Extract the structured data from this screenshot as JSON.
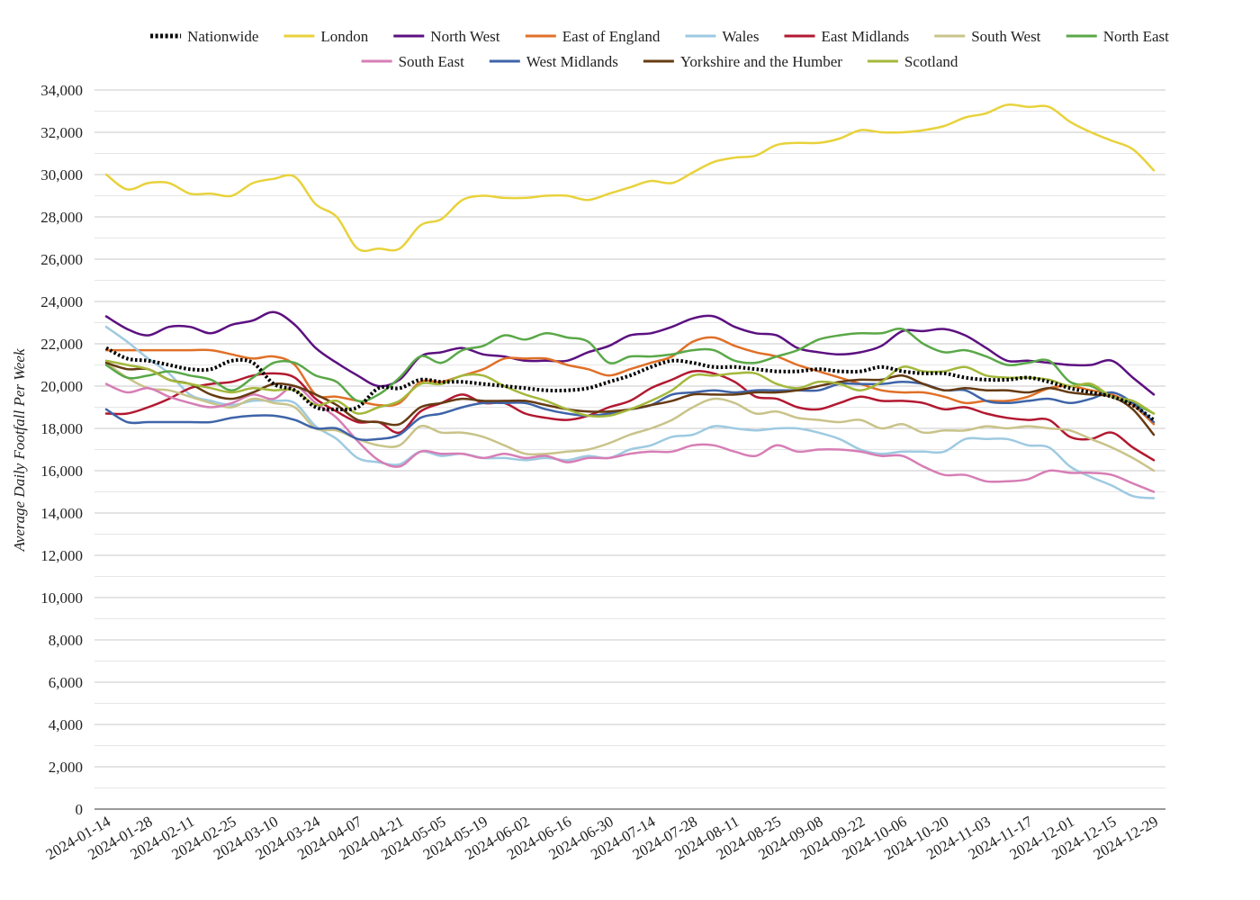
{
  "chart_data": {
    "type": "line",
    "ylabel": "Average Daily Footfall Per Week",
    "xlabel": "",
    "ylim": [
      0,
      34000
    ],
    "yticks": [
      0,
      2000,
      4000,
      6000,
      8000,
      10000,
      12000,
      14000,
      16000,
      18000,
      20000,
      22000,
      24000,
      26000,
      28000,
      30000,
      32000,
      34000
    ],
    "ytick_labels": [
      "0",
      "2,000",
      "4,000",
      "6,000",
      "8,000",
      "10,000",
      "12,000",
      "14,000",
      "16,000",
      "18,000",
      "20,000",
      "22,000",
      "24,000",
      "26,000",
      "28,000",
      "30,000",
      "32,000",
      "34,000"
    ],
    "x_tick_labels": [
      "2024-01-14",
      "2024-01-28",
      "2024-02-11",
      "2024-02-25",
      "2024-03-10",
      "2024-03-24",
      "2024-04-07",
      "2024-04-21",
      "2024-05-05",
      "2024-05-19",
      "2024-06-02",
      "2024-06-16",
      "2024-06-30",
      "2024-07-14",
      "2024-07-28",
      "2024-08-11",
      "2024-08-25",
      "2024-09-08",
      "2024-09-22",
      "2024-10-06",
      "2024-10-20",
      "2024-11-03",
      "2024-11-17",
      "2024-12-01",
      "2024-12-15",
      "2024-12-29"
    ],
    "grid": true,
    "legend_position": "top",
    "x": [
      "2024-01-14",
      "2024-01-21",
      "2024-01-28",
      "2024-02-04",
      "2024-02-11",
      "2024-02-18",
      "2024-02-25",
      "2024-03-03",
      "2024-03-10",
      "2024-03-17",
      "2024-03-24",
      "2024-03-31",
      "2024-04-07",
      "2024-04-14",
      "2024-04-21",
      "2024-04-28",
      "2024-05-05",
      "2024-05-12",
      "2024-05-19",
      "2024-05-26",
      "2024-06-02",
      "2024-06-09",
      "2024-06-16",
      "2024-06-23",
      "2024-06-30",
      "2024-07-07",
      "2024-07-14",
      "2024-07-21",
      "2024-07-28",
      "2024-08-04",
      "2024-08-11",
      "2024-08-18",
      "2024-08-25",
      "2024-09-01",
      "2024-09-08",
      "2024-09-15",
      "2024-09-22",
      "2024-09-29",
      "2024-10-06",
      "2024-10-13",
      "2024-10-20",
      "2024-10-27",
      "2024-11-03",
      "2024-11-10",
      "2024-11-17",
      "2024-11-24",
      "2024-12-01",
      "2024-12-08",
      "2024-12-15",
      "2024-12-22",
      "2024-12-29"
    ],
    "series": [
      {
        "name": "Nationwide",
        "color": "#000000",
        "style": "dotted",
        "values": [
          21800,
          21300,
          21200,
          21000,
          20800,
          20800,
          21200,
          21100,
          20100,
          19800,
          19000,
          18900,
          19000,
          19900,
          19900,
          20300,
          20200,
          20200,
          20100,
          20000,
          19900,
          19800,
          19800,
          19900,
          20200,
          20500,
          20900,
          21200,
          21100,
          20900,
          20900,
          20800,
          20700,
          20700,
          20800,
          20700,
          20700,
          20900,
          20700,
          20600,
          20600,
          20400,
          20300,
          20300,
          20400,
          20200,
          19900,
          19700,
          19500,
          19100,
          18400
        ]
      },
      {
        "name": "London",
        "color": "#e8d23c",
        "values": [
          30000,
          29300,
          29600,
          29600,
          29100,
          29100,
          29000,
          29600,
          29800,
          29900,
          28600,
          28000,
          26500,
          26500,
          26500,
          27600,
          27900,
          28800,
          29000,
          28900,
          28900,
          29000,
          29000,
          28800,
          29100,
          29400,
          29700,
          29600,
          30100,
          30600,
          30800,
          30900,
          31400,
          31500,
          31500,
          31700,
          32100,
          32000,
          32000,
          32100,
          32300,
          32700,
          32900,
          33300,
          33200,
          33200,
          32500,
          32000,
          31600,
          31200,
          30200
        ]
      },
      {
        "name": "North West",
        "color": "#5c1080",
        "values": [
          23300,
          22700,
          22400,
          22800,
          22800,
          22500,
          22900,
          23100,
          23500,
          22900,
          21800,
          21100,
          20500,
          20000,
          20300,
          21400,
          21600,
          21800,
          21500,
          21400,
          21200,
          21200,
          21200,
          21600,
          21900,
          22400,
          22500,
          22800,
          23200,
          23300,
          22800,
          22500,
          22400,
          21800,
          21600,
          21500,
          21600,
          21900,
          22600,
          22600,
          22700,
          22400,
          21800,
          21200,
          21200,
          21100,
          21000,
          21000,
          21200,
          20400,
          19600
        ]
      },
      {
        "name": "East of England",
        "color": "#e07028",
        "values": [
          21700,
          21700,
          21700,
          21700,
          21700,
          21700,
          21500,
          21300,
          21400,
          21000,
          19600,
          19500,
          19300,
          19100,
          19200,
          20200,
          20200,
          20500,
          20800,
          21300,
          21300,
          21300,
          21000,
          20800,
          20500,
          20800,
          21100,
          21400,
          22100,
          22300,
          21900,
          21600,
          21400,
          21000,
          20700,
          20400,
          20100,
          19800,
          19700,
          19700,
          19500,
          19200,
          19300,
          19300,
          19500,
          19900,
          20000,
          19800,
          19600,
          19100,
          18200
        ]
      },
      {
        "name": "Wales",
        "color": "#9ecae1",
        "values": [
          22800,
          22100,
          21300,
          20600,
          19600,
          19300,
          19100,
          19300,
          19300,
          19200,
          18100,
          17500,
          16600,
          16400,
          16300,
          16900,
          16700,
          16800,
          16600,
          16600,
          16500,
          16600,
          16500,
          16700,
          16600,
          17000,
          17200,
          17600,
          17700,
          18100,
          18000,
          17900,
          18000,
          18000,
          17800,
          17500,
          17000,
          16800,
          16900,
          16900,
          16900,
          17500,
          17500,
          17500,
          17200,
          17100,
          16200,
          15700,
          15300,
          14800,
          14700
        ]
      },
      {
        "name": "East Midlands",
        "color": "#b21830",
        "values": [
          18700,
          18700,
          19000,
          19400,
          19900,
          20100,
          20200,
          20500,
          20600,
          20400,
          19400,
          18800,
          18300,
          18300,
          17800,
          18800,
          19200,
          19600,
          19200,
          19200,
          18700,
          18500,
          18400,
          18600,
          19000,
          19300,
          19900,
          20300,
          20700,
          20600,
          20200,
          19500,
          19400,
          19000,
          18900,
          19200,
          19500,
          19300,
          19300,
          19200,
          18900,
          19000,
          18700,
          18500,
          18400,
          18400,
          17600,
          17500,
          17800,
          17100,
          16500
        ]
      },
      {
        "name": "South West",
        "color": "#c9c38a",
        "values": [
          21100,
          20400,
          19900,
          19800,
          19500,
          19200,
          19000,
          19400,
          19200,
          19000,
          18000,
          17900,
          17500,
          17200,
          17200,
          18100,
          17800,
          17800,
          17600,
          17200,
          16800,
          16800,
          16900,
          17000,
          17300,
          17700,
          18000,
          18400,
          19000,
          19400,
          19200,
          18700,
          18800,
          18500,
          18400,
          18300,
          18400,
          18000,
          18200,
          17800,
          17900,
          17900,
          18100,
          18000,
          18100,
          18000,
          17900,
          17500,
          17100,
          16600,
          16000
        ]
      },
      {
        "name": "North East",
        "color": "#5aa848",
        "values": [
          21000,
          20400,
          20500,
          20700,
          20500,
          20300,
          19800,
          20400,
          21100,
          21100,
          20500,
          20200,
          19300,
          19600,
          20400,
          21400,
          21100,
          21700,
          21900,
          22400,
          22200,
          22500,
          22300,
          22100,
          21100,
          21400,
          21400,
          21500,
          21700,
          21700,
          21200,
          21100,
          21400,
          21700,
          22200,
          22400,
          22500,
          22500,
          22700,
          22000,
          21600,
          21700,
          21400,
          21000,
          21100,
          21200,
          20200,
          20000,
          19500,
          19200,
          18700
        ]
      },
      {
        "name": "South East",
        "color": "#d67eb5",
        "values": [
          20100,
          19700,
          19900,
          19500,
          19200,
          19000,
          19200,
          19600,
          19400,
          20000,
          19200,
          18500,
          17400,
          16500,
          16200,
          16900,
          16800,
          16800,
          16600,
          16800,
          16600,
          16700,
          16400,
          16600,
          16600,
          16800,
          16900,
          16900,
          17200,
          17200,
          16900,
          16700,
          17200,
          16900,
          17000,
          17000,
          16900,
          16700,
          16700,
          16200,
          15800,
          15800,
          15500,
          15500,
          15600,
          16000,
          15900,
          15900,
          15800,
          15400,
          15000
        ]
      },
      {
        "name": "West Midlands",
        "color": "#3e64a8",
        "values": [
          18900,
          18300,
          18300,
          18300,
          18300,
          18300,
          18500,
          18600,
          18600,
          18400,
          18000,
          18000,
          17500,
          17500,
          17700,
          18500,
          18700,
          19000,
          19200,
          19200,
          19200,
          18900,
          18700,
          18600,
          18700,
          18900,
          19100,
          19600,
          19700,
          19800,
          19700,
          19800,
          19800,
          19800,
          19800,
          20100,
          20100,
          20100,
          20200,
          20100,
          19800,
          19800,
          19300,
          19200,
          19300,
          19400,
          19200,
          19400,
          19700,
          19200,
          18300
        ]
      },
      {
        "name": "Yorkshire and the Humber",
        "color": "#663b12",
        "values": [
          21100,
          20800,
          20800,
          20300,
          20100,
          19600,
          19400,
          19700,
          20100,
          20000,
          19600,
          19100,
          18400,
          18300,
          18200,
          19000,
          19200,
          19400,
          19300,
          19300,
          19300,
          19100,
          18900,
          18800,
          18800,
          18900,
          19100,
          19300,
          19600,
          19600,
          19600,
          19700,
          19700,
          19800,
          20000,
          20200,
          20300,
          20300,
          20500,
          20100,
          19800,
          19900,
          19800,
          19800,
          19700,
          19900,
          19700,
          19600,
          19500,
          18900,
          17700
        ]
      },
      {
        "name": "Scotland",
        "color": "#a4b83c",
        "values": [
          21200,
          21000,
          20800,
          20300,
          20100,
          19900,
          19700,
          19900,
          19800,
          19800,
          19100,
          19300,
          18700,
          19000,
          19300,
          20100,
          20100,
          20500,
          20500,
          20000,
          19600,
          19300,
          18900,
          18600,
          18600,
          18900,
          19300,
          19800,
          20500,
          20500,
          20600,
          20600,
          20100,
          19900,
          20200,
          20100,
          19800,
          20200,
          20900,
          20700,
          20700,
          20900,
          20500,
          20400,
          20400,
          20300,
          20000,
          20100,
          19500,
          19300,
          18700
        ]
      }
    ]
  }
}
